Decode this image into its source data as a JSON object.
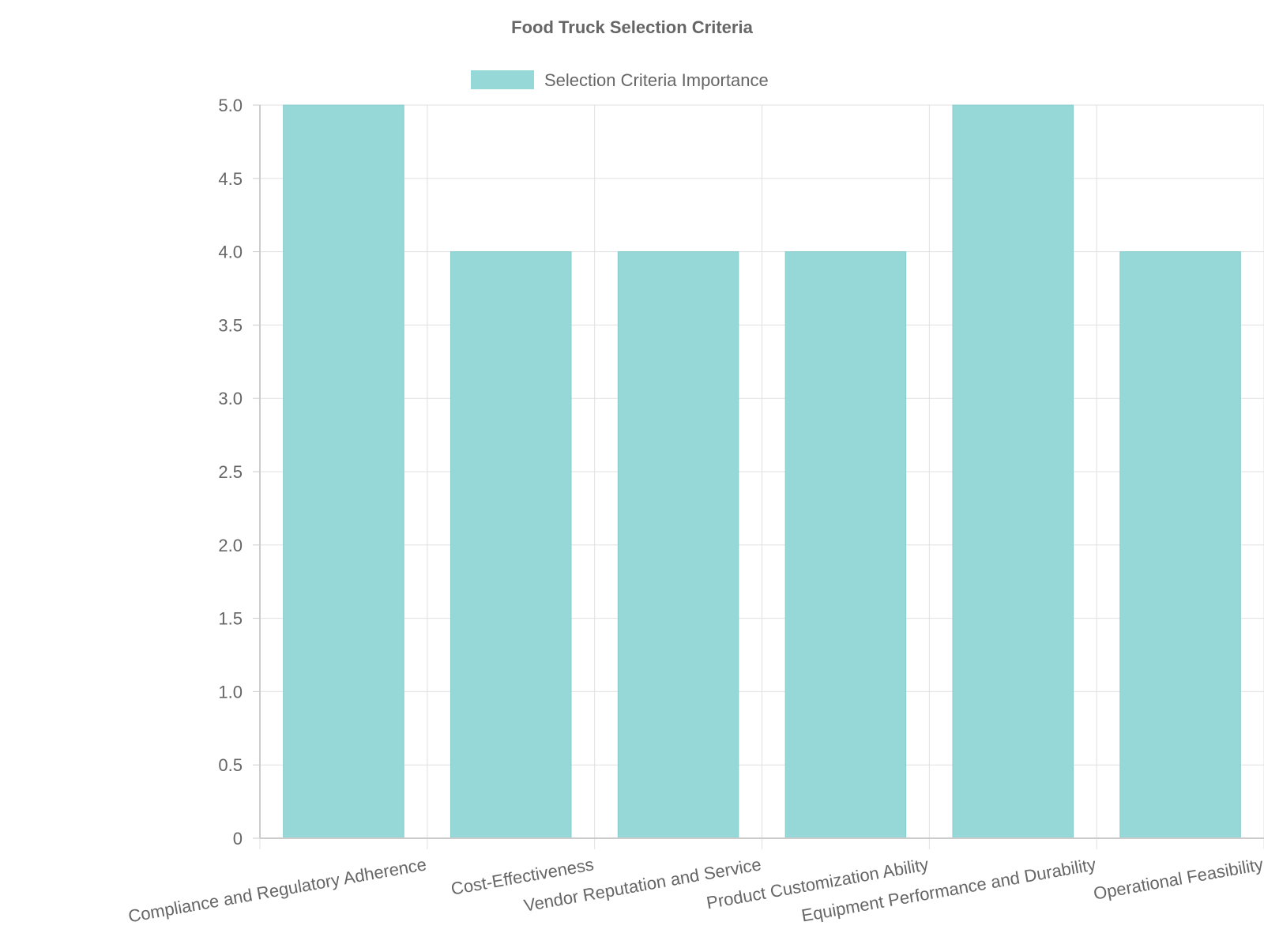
{
  "chart_data": {
    "type": "bar",
    "title": "Food Truck Selection Criteria",
    "categories": [
      "Compliance and Regulatory Adherence",
      "Cost-Effectiveness",
      "Vendor Reputation and Service",
      "Product Customization Ability",
      "Equipment Performance and Durability",
      "Operational Feasibility"
    ],
    "series": [
      {
        "name": "Selection Criteria Importance",
        "values": [
          5,
          4,
          4,
          4,
          5,
          4
        ],
        "color": "#96d8d8"
      }
    ],
    "y_ticks": [
      "0",
      "0.5",
      "1.0",
      "1.5",
      "2.0",
      "2.5",
      "3.0",
      "3.5",
      "4.0",
      "4.5",
      "5.0"
    ],
    "ylim": [
      0,
      5
    ],
    "grid": true,
    "legend_position": "top-center",
    "colors": {
      "text": "#666666",
      "grid": "#e0e0e0",
      "axis": "#cccccc",
      "bar_border": "#88cccc"
    }
  }
}
